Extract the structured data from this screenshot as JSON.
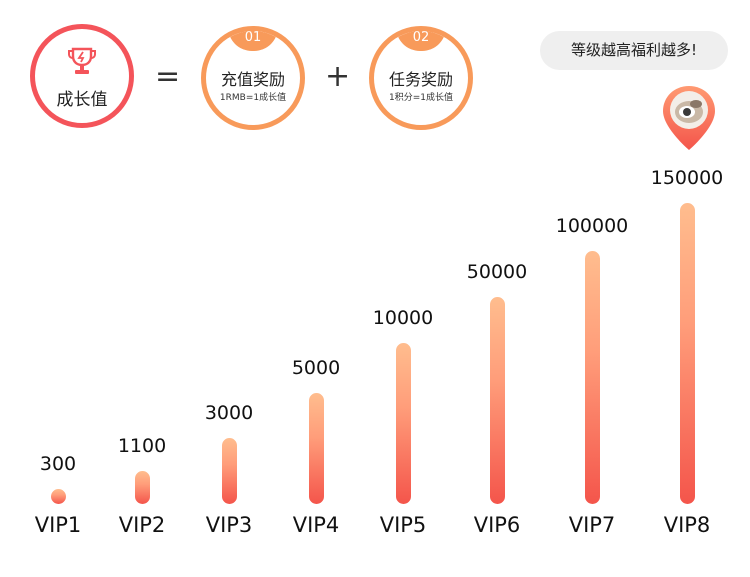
{
  "growth": {
    "label": "成长值",
    "icon": "trophy-icon"
  },
  "operators": {
    "equals": "=",
    "plus": "+"
  },
  "rewards": [
    {
      "number": "01",
      "title": "充值奖励",
      "subtitle": "1RMB=1成长值"
    },
    {
      "number": "02",
      "title": "任务奖励",
      "subtitle": "1积分=1成长值"
    }
  ],
  "tip": {
    "text": "等级越高福利越多!"
  },
  "avatar": {
    "icon": "location-pin-avatar-icon"
  },
  "colors": {
    "accent_red": "#f4545a",
    "accent_orange": "#f89a5a",
    "bar_top": "#ffbd8e",
    "bar_bottom": "#f4554b"
  },
  "levels": [
    {
      "label": "VIP1",
      "value": "300"
    },
    {
      "label": "VIP2",
      "value": "1100"
    },
    {
      "label": "VIP3",
      "value": "3000"
    },
    {
      "label": "VIP4",
      "value": "5000"
    },
    {
      "label": "VIP5",
      "value": "10000"
    },
    {
      "label": "VIP6",
      "value": "50000"
    },
    {
      "label": "VIP7",
      "value": "100000"
    },
    {
      "label": "VIP8",
      "value": "150000"
    }
  ]
}
